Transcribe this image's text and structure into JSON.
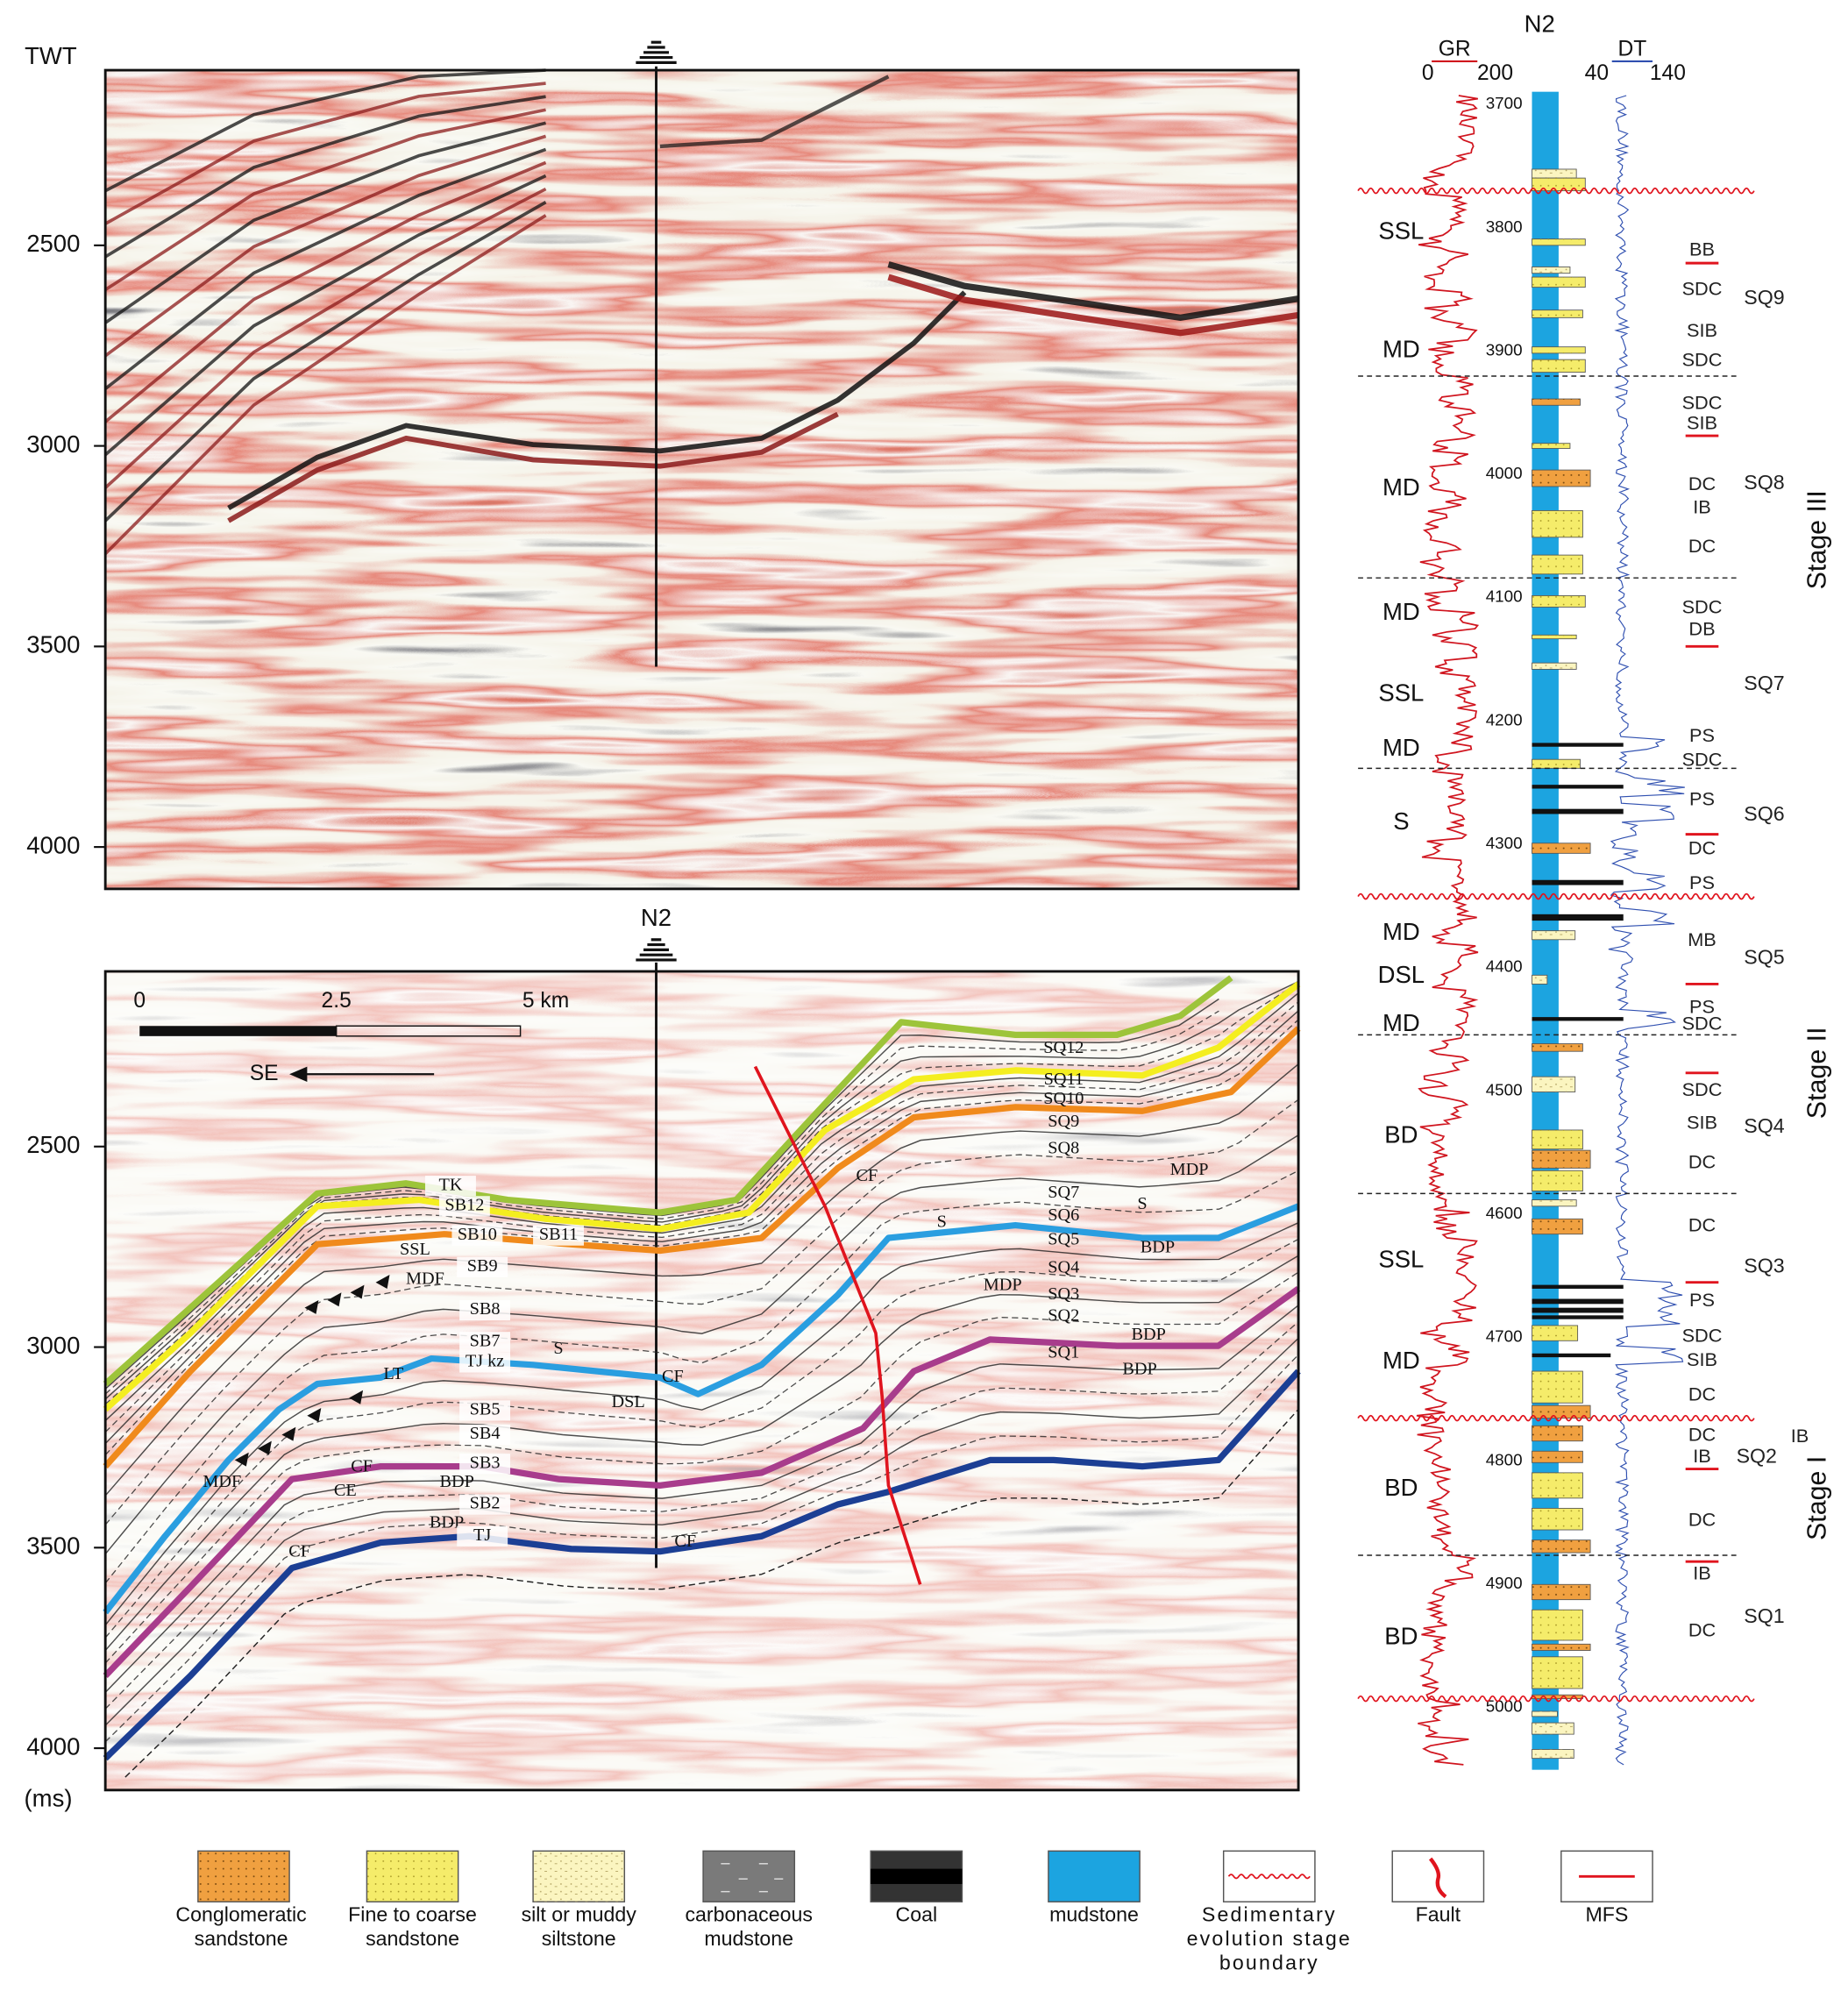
{
  "time_axis": {
    "title": "TWT",
    "unit": "(ms)",
    "ticks": [
      "2500",
      "3000",
      "3500",
      "4000"
    ]
  },
  "seismic_profile": {
    "well": "N2",
    "scale_labels": [
      "0",
      "2.5",
      "5 km"
    ],
    "direction": "SE",
    "labels": [
      "SQ12",
      "SQ11",
      "SQ10",
      "SQ9",
      "SQ8",
      "MDP",
      "CF",
      "SQ7",
      "SQ6",
      "S",
      "S",
      "SQ5",
      "SQ4",
      "BDP",
      "MDP",
      "SQ3",
      "SQ2",
      "BDP",
      "SQ1",
      "BDP",
      "TK",
      "SB12",
      "SB10",
      "SB11",
      "SSL",
      "SB9",
      "MDF",
      "SB8",
      "SB7",
      "S",
      "TJ kz",
      "LT",
      "CF",
      "DSL",
      "SB5",
      "SB4",
      "SB3",
      "CF",
      "BDP",
      "CE",
      "MDF",
      "SB2",
      "BDP",
      "TJ",
      "CF",
      "CF"
    ]
  },
  "well_log": {
    "well": "N2",
    "gr": {
      "name": "GR",
      "min": "0",
      "max": "200"
    },
    "dt": {
      "name": "DT",
      "min": "40",
      "max": "140"
    },
    "depths": [
      "3700",
      "3800",
      "3900",
      "4000",
      "4100",
      "4200",
      "4300",
      "4400",
      "4500",
      "4600",
      "4700",
      "4800",
      "4900",
      "5000"
    ],
    "facies": [
      "SSL",
      "MD",
      "MD",
      "MD",
      "SSL",
      "MD",
      "S",
      "MD",
      "DSL",
      "MD",
      "BD",
      "SSL",
      "MD",
      "BD",
      "BD"
    ],
    "sub_facies": [
      "BB",
      "SDC",
      "SIB",
      "SDC",
      "SDC",
      "SIB",
      "DC",
      "IB",
      "DC",
      "SDC",
      "DB",
      "PS",
      "SDC",
      "PS",
      "DC",
      "PS",
      "MB",
      "PS",
      "SDC",
      "SDC",
      "SIB",
      "DC",
      "DC",
      "PS",
      "SDC",
      "SIB",
      "DC",
      "DC",
      "IB",
      "DC",
      "IB",
      "DC"
    ],
    "sequences": [
      "SQ9",
      "SQ8",
      "SQ7",
      "SQ6",
      "SQ5",
      "SQ4",
      "SQ3",
      "SQ2",
      "SQ1"
    ],
    "sq2_note": "IB",
    "stages": [
      "Stage III",
      "Stage II",
      "Stage I"
    ]
  },
  "legend": [
    {
      "label": [
        "Conglomeratic",
        "sandstone"
      ]
    },
    {
      "label": [
        "Fine to coarse",
        "sandstone"
      ]
    },
    {
      "label": [
        "silt or muddy",
        "siltstone"
      ]
    },
    {
      "label": [
        "carbonaceous",
        "mudstone"
      ]
    },
    {
      "label": [
        "Coal"
      ]
    },
    {
      "label": [
        "mudstone"
      ]
    },
    {
      "label": [
        "Sedimentary",
        "evolution stage",
        "boundary"
      ]
    },
    {
      "label": [
        "Fault"
      ]
    },
    {
      "label": [
        "MFS"
      ]
    }
  ]
}
